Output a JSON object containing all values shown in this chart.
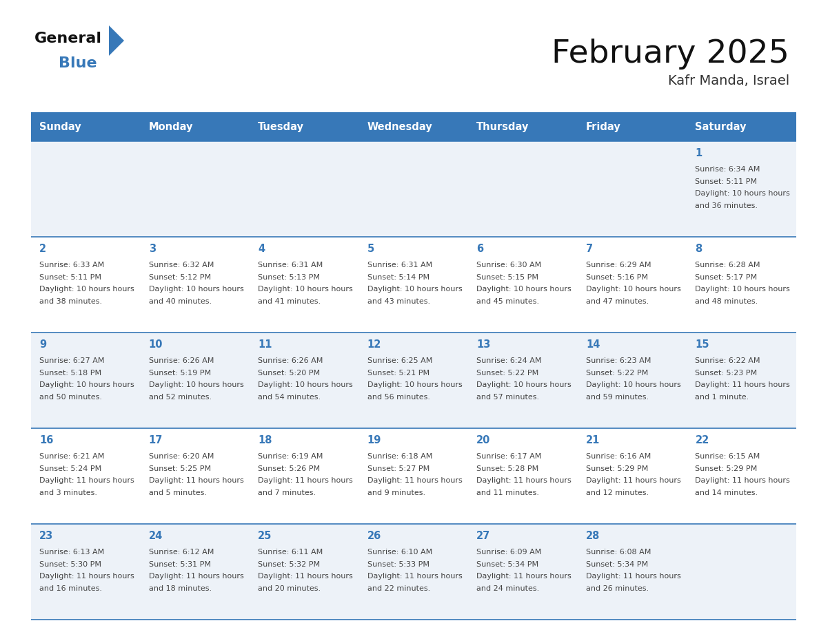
{
  "title": "February 2025",
  "subtitle": "Kafr Manda, Israel",
  "days_of_week": [
    "Sunday",
    "Monday",
    "Tuesday",
    "Wednesday",
    "Thursday",
    "Friday",
    "Saturday"
  ],
  "header_bg": "#3778b8",
  "header_text_color": "#ffffff",
  "cell_bg_odd": "#edf2f8",
  "cell_bg_even": "#ffffff",
  "border_color": "#3778b8",
  "day_num_color": "#3778b8",
  "text_color": "#444444",
  "logo_black": "#111111",
  "logo_blue": "#3778b8",
  "calendar_data": [
    [
      null,
      null,
      null,
      null,
      null,
      null,
      {
        "day": 1,
        "sunrise": "6:34 AM",
        "sunset": "5:11 PM",
        "daylight": "10 hours and 36 minutes."
      }
    ],
    [
      {
        "day": 2,
        "sunrise": "6:33 AM",
        "sunset": "5:11 PM",
        "daylight": "10 hours and 38 minutes."
      },
      {
        "day": 3,
        "sunrise": "6:32 AM",
        "sunset": "5:12 PM",
        "daylight": "10 hours and 40 minutes."
      },
      {
        "day": 4,
        "sunrise": "6:31 AM",
        "sunset": "5:13 PM",
        "daylight": "10 hours and 41 minutes."
      },
      {
        "day": 5,
        "sunrise": "6:31 AM",
        "sunset": "5:14 PM",
        "daylight": "10 hours and 43 minutes."
      },
      {
        "day": 6,
        "sunrise": "6:30 AM",
        "sunset": "5:15 PM",
        "daylight": "10 hours and 45 minutes."
      },
      {
        "day": 7,
        "sunrise": "6:29 AM",
        "sunset": "5:16 PM",
        "daylight": "10 hours and 47 minutes."
      },
      {
        "day": 8,
        "sunrise": "6:28 AM",
        "sunset": "5:17 PM",
        "daylight": "10 hours and 48 minutes."
      }
    ],
    [
      {
        "day": 9,
        "sunrise": "6:27 AM",
        "sunset": "5:18 PM",
        "daylight": "10 hours and 50 minutes."
      },
      {
        "day": 10,
        "sunrise": "6:26 AM",
        "sunset": "5:19 PM",
        "daylight": "10 hours and 52 minutes."
      },
      {
        "day": 11,
        "sunrise": "6:26 AM",
        "sunset": "5:20 PM",
        "daylight": "10 hours and 54 minutes."
      },
      {
        "day": 12,
        "sunrise": "6:25 AM",
        "sunset": "5:21 PM",
        "daylight": "10 hours and 56 minutes."
      },
      {
        "day": 13,
        "sunrise": "6:24 AM",
        "sunset": "5:22 PM",
        "daylight": "10 hours and 57 minutes."
      },
      {
        "day": 14,
        "sunrise": "6:23 AM",
        "sunset": "5:22 PM",
        "daylight": "10 hours and 59 minutes."
      },
      {
        "day": 15,
        "sunrise": "6:22 AM",
        "sunset": "5:23 PM",
        "daylight": "11 hours and 1 minute."
      }
    ],
    [
      {
        "day": 16,
        "sunrise": "6:21 AM",
        "sunset": "5:24 PM",
        "daylight": "11 hours and 3 minutes."
      },
      {
        "day": 17,
        "sunrise": "6:20 AM",
        "sunset": "5:25 PM",
        "daylight": "11 hours and 5 minutes."
      },
      {
        "day": 18,
        "sunrise": "6:19 AM",
        "sunset": "5:26 PM",
        "daylight": "11 hours and 7 minutes."
      },
      {
        "day": 19,
        "sunrise": "6:18 AM",
        "sunset": "5:27 PM",
        "daylight": "11 hours and 9 minutes."
      },
      {
        "day": 20,
        "sunrise": "6:17 AM",
        "sunset": "5:28 PM",
        "daylight": "11 hours and 11 minutes."
      },
      {
        "day": 21,
        "sunrise": "6:16 AM",
        "sunset": "5:29 PM",
        "daylight": "11 hours and 12 minutes."
      },
      {
        "day": 22,
        "sunrise": "6:15 AM",
        "sunset": "5:29 PM",
        "daylight": "11 hours and 14 minutes."
      }
    ],
    [
      {
        "day": 23,
        "sunrise": "6:13 AM",
        "sunset": "5:30 PM",
        "daylight": "11 hours and 16 minutes."
      },
      {
        "day": 24,
        "sunrise": "6:12 AM",
        "sunset": "5:31 PM",
        "daylight": "11 hours and 18 minutes."
      },
      {
        "day": 25,
        "sunrise": "6:11 AM",
        "sunset": "5:32 PM",
        "daylight": "11 hours and 20 minutes."
      },
      {
        "day": 26,
        "sunrise": "6:10 AM",
        "sunset": "5:33 PM",
        "daylight": "11 hours and 22 minutes."
      },
      {
        "day": 27,
        "sunrise": "6:09 AM",
        "sunset": "5:34 PM",
        "daylight": "11 hours and 24 minutes."
      },
      {
        "day": 28,
        "sunrise": "6:08 AM",
        "sunset": "5:34 PM",
        "daylight": "11 hours and 26 minutes."
      },
      null
    ]
  ]
}
